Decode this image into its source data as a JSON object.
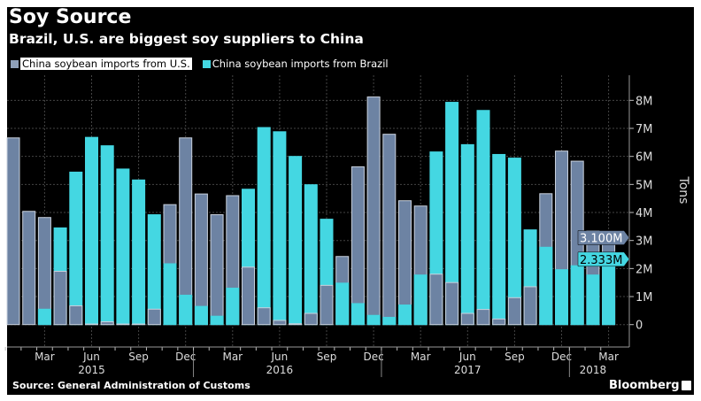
{
  "title": "Soy Source",
  "subtitle": "Brazil, U.S. are biggest soy suppliers to China",
  "source": "Source: General Administration of Customs",
  "brand": "Bloomberg",
  "colors": {
    "us": "#6d83a3",
    "brazil": "#44d7e2",
    "background": "#000000"
  },
  "chart_data": {
    "type": "bar",
    "title": "Soy Source",
    "subtitle": "Brazil, U.S. are biggest soy suppliers to China",
    "xlabel": "",
    "ylabel": "Tons",
    "ylim": [
      -0.8,
      8.7
    ],
    "yticks": [
      0,
      1,
      2,
      3,
      4,
      5,
      6,
      7,
      8
    ],
    "ytick_labels": [
      "0",
      "1M",
      "2M",
      "3M",
      "4M",
      "5M",
      "6M",
      "7M",
      "8M"
    ],
    "grid": true,
    "legend_position": "top-left",
    "x_tick_labels": [
      {
        "month_index": 2,
        "label": "Mar"
      },
      {
        "month_index": 5,
        "label": "Jun"
      },
      {
        "month_index": 8,
        "label": "Sep"
      },
      {
        "month_index": 11,
        "label": "Dec"
      },
      {
        "month_index": 14,
        "label": "Mar"
      },
      {
        "month_index": 17,
        "label": "Jun"
      },
      {
        "month_index": 20,
        "label": "Sep"
      },
      {
        "month_index": 23,
        "label": "Dec"
      },
      {
        "month_index": 26,
        "label": "Mar"
      },
      {
        "month_index": 29,
        "label": "Jun"
      },
      {
        "month_index": 32,
        "label": "Sep"
      },
      {
        "month_index": 35,
        "label": "Dec"
      },
      {
        "month_index": 38,
        "label": "Mar"
      }
    ],
    "year_labels": [
      {
        "month_index": 5,
        "label": "2015"
      },
      {
        "month_index": 17,
        "label": "2016"
      },
      {
        "month_index": 29,
        "label": "2017"
      },
      {
        "month_index": 37,
        "label": "2018"
      }
    ],
    "categories": [
      "2015-01",
      "2015-02",
      "2015-03",
      "2015-04",
      "2015-05",
      "2015-06",
      "2015-07",
      "2015-08",
      "2015-09",
      "2015-10",
      "2015-11",
      "2015-12",
      "2016-01",
      "2016-02",
      "2016-03",
      "2016-04",
      "2016-05",
      "2016-06",
      "2016-07",
      "2016-08",
      "2016-09",
      "2016-10",
      "2016-11",
      "2016-12",
      "2017-01",
      "2017-02",
      "2017-03",
      "2017-04",
      "2017-05",
      "2017-06",
      "2017-07",
      "2017-08",
      "2017-09",
      "2017-10",
      "2017-11",
      "2017-12",
      "2018-01",
      "2018-02",
      "2018-03"
    ],
    "series": [
      {
        "name": "China soybean imports from U.S.",
        "unit": "M tons",
        "values": [
          6.66,
          4.04,
          3.82,
          1.9,
          0.67,
          0.02,
          0.1,
          0.02,
          0.02,
          0.55,
          4.28,
          6.66,
          4.66,
          3.92,
          4.6,
          2.05,
          0.6,
          0.15,
          0.03,
          0.4,
          1.4,
          2.43,
          5.63,
          8.12,
          6.79,
          4.42,
          4.23,
          1.8,
          1.5,
          0.4,
          0.54,
          0.2,
          0.96,
          1.35,
          4.67,
          6.19,
          5.83,
          3.35,
          3.1
        ]
      },
      {
        "name": "China soybean imports from Brazil",
        "unit": "M tons",
        "values": [
          0.0,
          0.0,
          0.55,
          3.45,
          5.44,
          6.68,
          6.38,
          5.55,
          5.16,
          3.92,
          2.17,
          1.05,
          0.65,
          0.3,
          1.3,
          4.83,
          7.03,
          6.88,
          6.0,
          4.99,
          3.76,
          1.48,
          0.75,
          0.33,
          0.26,
          0.7,
          1.77,
          6.16,
          7.93,
          6.42,
          7.64,
          6.07,
          5.94,
          3.38,
          2.76,
          1.96,
          2.1,
          1.77,
          2.333
        ]
      }
    ],
    "last_value_labels": {
      "us": "3.100M",
      "brazil": "2.333M"
    }
  }
}
